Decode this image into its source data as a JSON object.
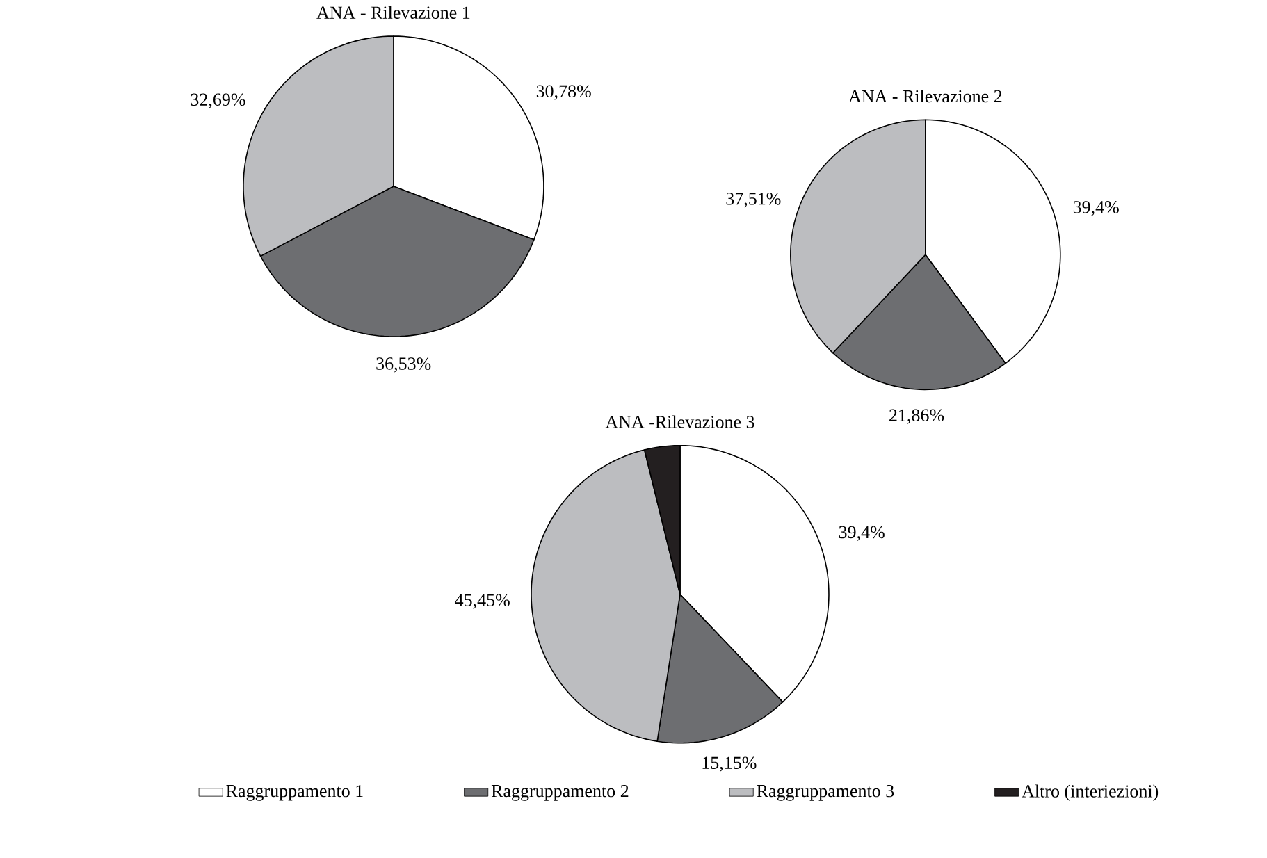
{
  "chart_data": [
    {
      "type": "pie",
      "title": "ANA - Rilevazione 1",
      "categories": [
        null,
        null,
        null
      ],
      "values": [
        30.78,
        36.53,
        32.69
      ],
      "value_labels": [
        "30,78%",
        "36,53%",
        "32,69%"
      ],
      "colors": [
        "#ffffff",
        "#6d6e71",
        "#bcbdc0"
      ]
    },
    {
      "type": "pie",
      "title": "ANA - Rilevazione 2",
      "categories": [
        null,
        null,
        null
      ],
      "values": [
        39.4,
        21.86,
        37.51
      ],
      "value_labels": [
        "39,4%",
        "21,86%",
        "37,51%"
      ],
      "colors": [
        "#ffffff",
        "#6d6e71",
        "#bcbdc0"
      ]
    },
    {
      "type": "pie",
      "title": "ANA -Rilevazione 3",
      "categories": [
        "Raggruppamento 1",
        "Raggruppamento 2",
        "Raggruppamento 3",
        "Altro (interiezioni)"
      ],
      "values": [
        39.4,
        15.15,
        45.45,
        4
      ],
      "value_labels": [
        "39,4%",
        "15,15%",
        "45,45%",
        null
      ],
      "colors": [
        "#ffffff",
        "#6d6e71",
        "#bcbdc0",
        "#231f20"
      ],
      "legend": "bottom"
    }
  ]
}
